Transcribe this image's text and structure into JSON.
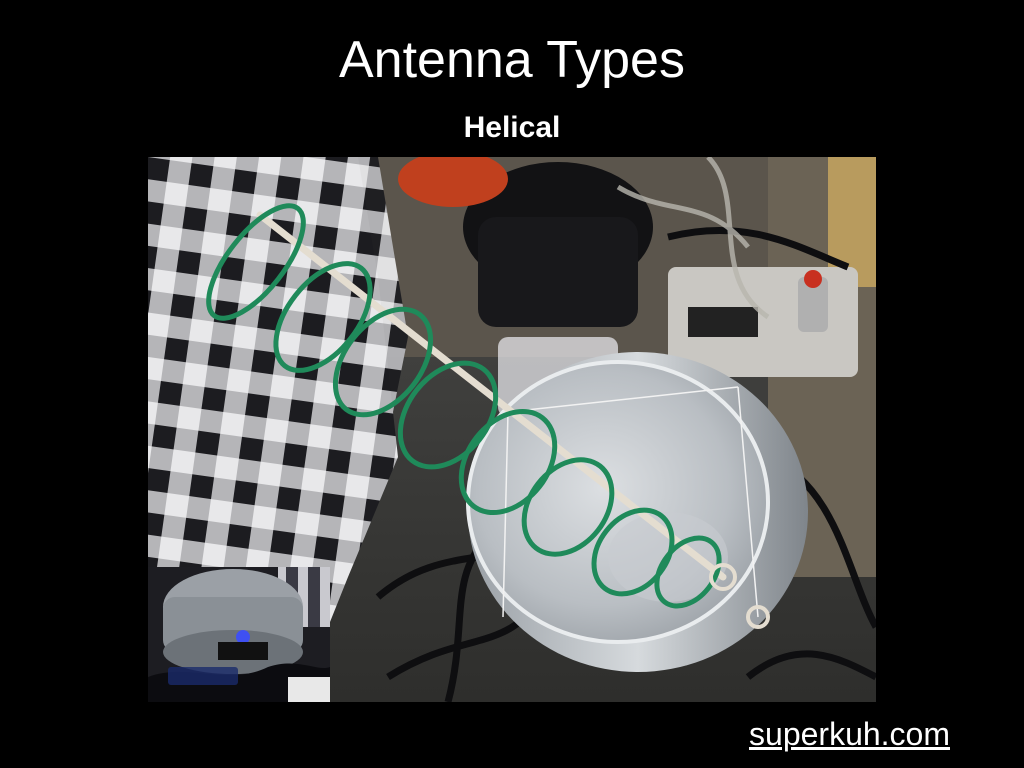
{
  "slide": {
    "title": "Antenna Types",
    "subtitle": "Helical",
    "link_text": "superkuh.com",
    "background_color": "#000000",
    "text_color": "#ffffff"
  },
  "photo": {
    "subject": "helical-antenna-in-bucket",
    "coil_color": "#1f8a5a"
  },
  "inset_photo": {
    "subject": "antenna-bucket-closeup"
  }
}
